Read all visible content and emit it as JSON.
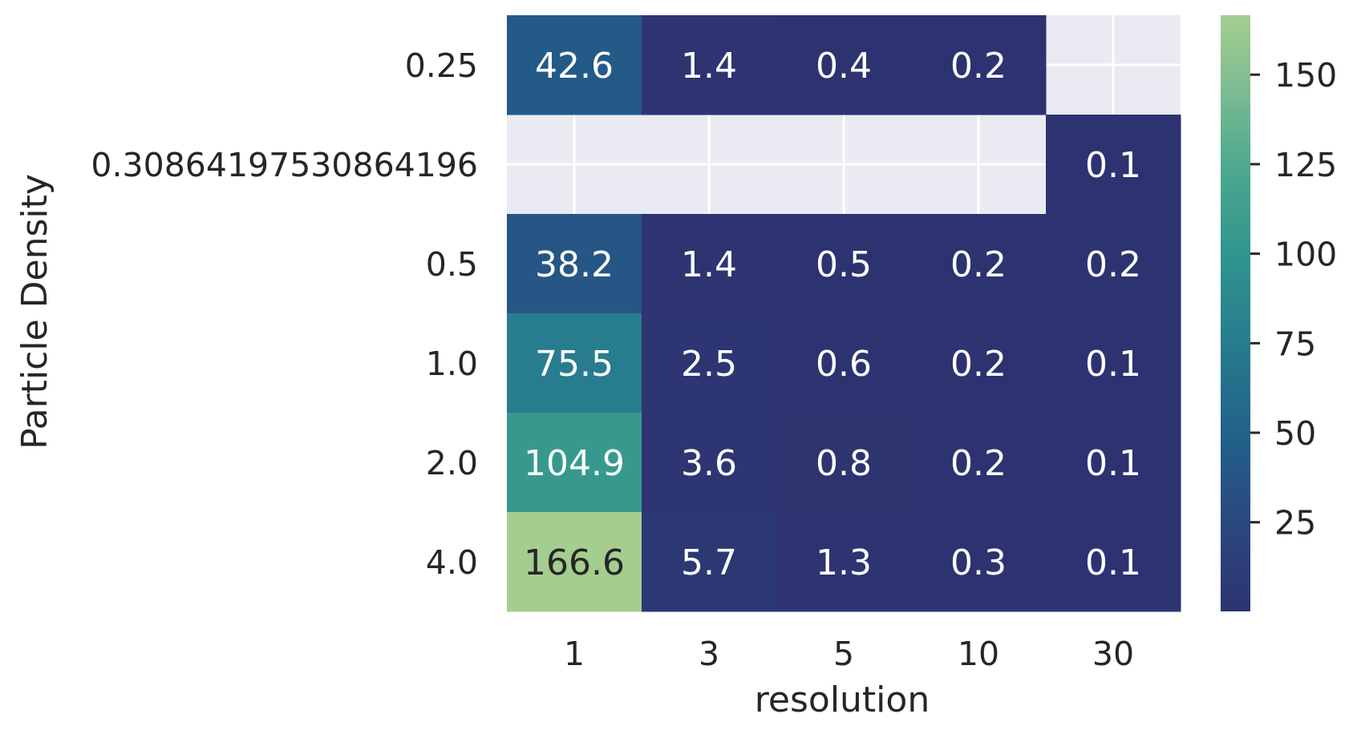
{
  "chart_data": {
    "type": "heatmap",
    "xlabel": "resolution",
    "ylabel": "Particle Density",
    "x_categories": [
      "1",
      "3",
      "5",
      "10",
      "30"
    ],
    "y_categories": [
      "0.25",
      "0.30864197530864196",
      "0.5",
      "1.0",
      "2.0",
      "4.0"
    ],
    "values": [
      [
        42.6,
        1.4,
        0.4,
        0.2,
        null
      ],
      [
        null,
        null,
        null,
        null,
        0.1
      ],
      [
        38.2,
        1.4,
        0.5,
        0.2,
        0.2
      ],
      [
        75.5,
        2.5,
        0.6,
        0.2,
        0.1
      ],
      [
        104.9,
        3.6,
        0.8,
        0.2,
        0.1
      ],
      [
        166.6,
        5.7,
        1.3,
        0.3,
        0.1
      ]
    ],
    "missing_color": "#eaeaf2",
    "colormap": "crest",
    "colorbar": {
      "min": 0.1,
      "max": 166.6,
      "ticks": [
        25,
        50,
        75,
        100,
        125,
        150
      ],
      "tick_labels": [
        "25",
        "50",
        "75",
        "100",
        "125",
        "150"
      ],
      "placement": "right"
    },
    "grid": true
  }
}
